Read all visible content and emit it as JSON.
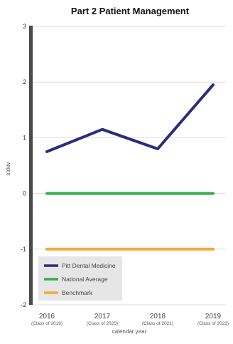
{
  "chart_data": {
    "type": "line",
    "title": "Part 2 Patient Management",
    "xlabel": "calendar year",
    "ylabel": "stdev",
    "categories": [
      "2016",
      "2017",
      "2018",
      "2019"
    ],
    "category_sublabels": [
      "(Class of 2019)",
      "(Class of 2020)",
      "(Class of 2021)",
      "(Class of 2022)"
    ],
    "ylim": [
      -2,
      3
    ],
    "yticks": [
      "3",
      "2",
      "1",
      "0",
      "-1",
      "-2"
    ],
    "grid": true,
    "legend_position": "bottom-left",
    "series": [
      {
        "name": "Pitt Dental Medicine",
        "values": [
          0.75,
          1.15,
          0.8,
          1.95
        ],
        "color": "#2b2c7c"
      },
      {
        "name": "National Average",
        "values": [
          0,
          0,
          0,
          0
        ],
        "color": "#35b04a"
      },
      {
        "name": "Benchmark",
        "values": [
          -1,
          -1,
          -1,
          -1
        ],
        "color": "#f4a93a"
      }
    ]
  }
}
